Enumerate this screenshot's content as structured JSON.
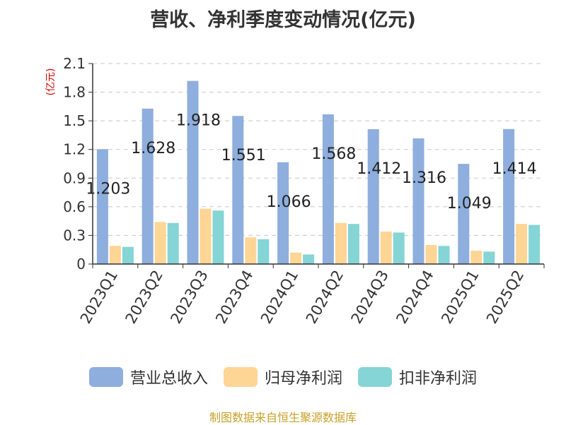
{
  "title": "营收、净利季度变动情况(亿元)",
  "source": "制图数据来自恒生聚源数据库",
  "chart_data": {
    "type": "bar",
    "ylabel": "(亿元)",
    "ylim": [
      0,
      2.1
    ],
    "yticks": [
      "0",
      "0.3",
      "0.6",
      "0.9",
      "1.2",
      "1.5",
      "1.8",
      "2.1"
    ],
    "grid": true,
    "legend_position": "bottom",
    "categories": [
      "2023Q1",
      "2023Q2",
      "2023Q3",
      "2023Q4",
      "2024Q1",
      "2024Q2",
      "2024Q3",
      "2024Q4",
      "2025Q1",
      "2025Q2"
    ],
    "series": [
      {
        "name": "营业总收入",
        "color": "#8eaedd",
        "values": [
          1.203,
          1.628,
          1.918,
          1.551,
          1.066,
          1.568,
          1.412,
          1.316,
          1.049,
          1.414
        ],
        "labels": [
          "1.203",
          "1.628",
          "1.918",
          "1.551",
          "1.066",
          "1.568",
          "1.412",
          "1.316",
          "1.049",
          "1.414"
        ]
      },
      {
        "name": "归母净利润",
        "color": "#fdd594",
        "values": [
          0.19,
          0.44,
          0.58,
          0.28,
          0.12,
          0.43,
          0.34,
          0.2,
          0.14,
          0.42
        ]
      },
      {
        "name": "扣非净利润",
        "color": "#85d4d6",
        "values": [
          0.18,
          0.43,
          0.56,
          0.26,
          0.1,
          0.42,
          0.33,
          0.19,
          0.13,
          0.41
        ]
      }
    ]
  }
}
